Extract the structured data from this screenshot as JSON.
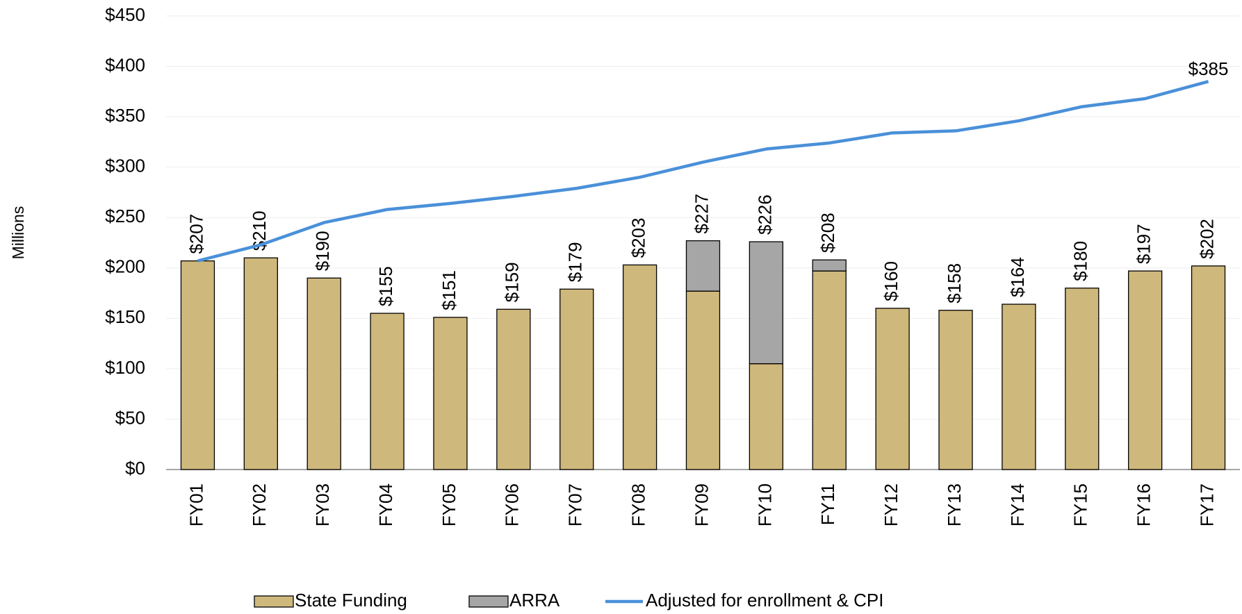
{
  "chart_data": {
    "type": "bar",
    "y_label": "Millions",
    "categories": [
      "FY01",
      "FY02",
      "FY03",
      "FY04",
      "FY05",
      "FY06",
      "FY07",
      "FY08",
      "FY09",
      "FY10",
      "FY11",
      "FY12",
      "FY13",
      "FY14",
      "FY15",
      "FY16",
      "FY17"
    ],
    "stacked": true,
    "series": [
      {
        "name": "State Funding",
        "color": "#cfb87c",
        "values": [
          207,
          210,
          190,
          155,
          151,
          159,
          179,
          203,
          177,
          105,
          197,
          160,
          158,
          164,
          180,
          197,
          202
        ]
      },
      {
        "name": "ARRA",
        "color": "#a6a6a6",
        "values": [
          0,
          0,
          0,
          0,
          0,
          0,
          0,
          0,
          50,
          121,
          11,
          0,
          0,
          0,
          0,
          0,
          0
        ]
      },
      {
        "name": "Adjusted for enrollment & CPI",
        "type": "line",
        "color": "#4a90d9",
        "values": [
          207,
          223,
          245,
          258,
          264,
          271,
          279,
          290,
          305,
          318,
          324,
          334,
          336,
          346,
          360,
          368,
          385
        ],
        "value_labels": [
          null,
          null,
          null,
          null,
          null,
          null,
          null,
          null,
          null,
          null,
          null,
          null,
          null,
          null,
          null,
          null,
          "$385"
        ]
      }
    ],
    "total_labels": [
      "$207",
      "$210",
      "$190",
      "$155",
      "$151",
      "$159",
      "$179",
      "$203",
      "$227",
      "$226",
      "$208",
      "$160",
      "$158",
      "$164",
      "$180",
      "$197",
      "$202"
    ],
    "ylim": [
      0,
      450
    ],
    "yticks": [
      {
        "value": 0,
        "label": "$0"
      },
      {
        "value": 50,
        "label": "$50"
      },
      {
        "value": 100,
        "label": "$100"
      },
      {
        "value": 150,
        "label": "$150"
      },
      {
        "value": 200,
        "label": "$200"
      },
      {
        "value": 250,
        "label": "$250"
      },
      {
        "value": 300,
        "label": "$300"
      },
      {
        "value": 350,
        "label": "$350"
      },
      {
        "value": 400,
        "label": "$400"
      },
      {
        "value": 450,
        "label": "$450"
      }
    ],
    "grid": true,
    "legend": "bottom"
  }
}
